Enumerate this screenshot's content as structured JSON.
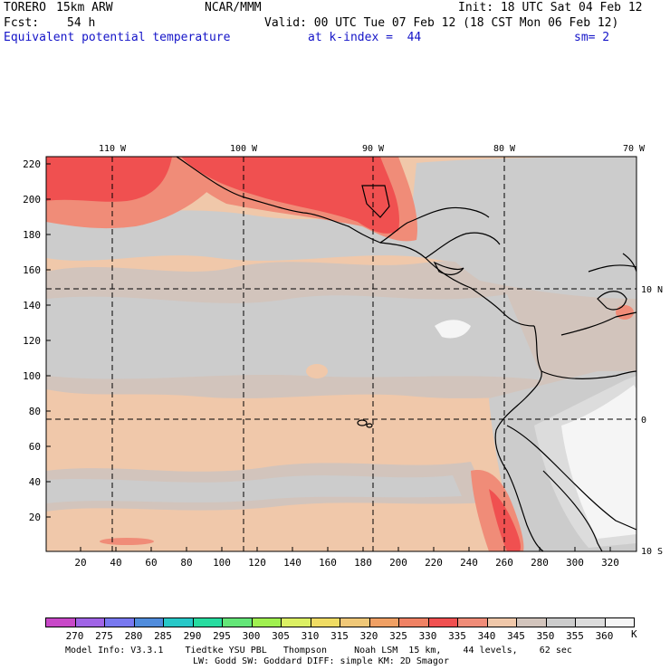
{
  "header": {
    "model": "TORERO",
    "resolution": "15km ARW",
    "center": "NCAR/MMM",
    "init": "Init: 18 UTC Sat 04 Feb 12",
    "fcst_label": "Fcst:",
    "fcst_value": "54 h",
    "valid": "Valid: 00 UTC Tue 07 Feb 12 (18 CST Mon 06 Feb 12)",
    "field": "Equivalent potential temperature",
    "level": "at k-index =  44",
    "smooth": "sm= 2"
  },
  "map": {
    "lon_labels": [
      "110 W",
      "100 W",
      "90 W",
      "80 W",
      "70 W"
    ],
    "lat_labels": [
      "10 N",
      "0",
      "10 S"
    ],
    "y_ticks": [
      "220",
      "200",
      "180",
      "160",
      "140",
      "120",
      "100",
      "80",
      "60",
      "40",
      "20"
    ],
    "x_ticks": [
      "20",
      "40",
      "60",
      "80",
      "100",
      "120",
      "140",
      "160",
      "180",
      "200",
      "220",
      "240",
      "260",
      "280",
      "300",
      "320"
    ]
  },
  "colorbar": {
    "unit": "K",
    "labels": [
      "270",
      "275",
      "280",
      "285",
      "290",
      "295",
      "300",
      "305",
      "310",
      "315",
      "320",
      "325",
      "330",
      "335",
      "340",
      "345",
      "350",
      "355",
      "360"
    ],
    "colors": [
      "#c848c8",
      "#a064e6",
      "#7878f0",
      "#508cdc",
      "#28c8c8",
      "#28dca0",
      "#64e678",
      "#a0f050",
      "#dcf064",
      "#f0dc64",
      "#f0c878",
      "#f0a064",
      "#f08264",
      "#f05050",
      "#f08c78",
      "#f0c8aa",
      "#d2c4bc",
      "#cccccc",
      "#dcdcdc",
      "#f5f5f5"
    ]
  },
  "footer": {
    "line1": "Model Info: V3.3.1    Tiedtke YSU PBL   Thompson     Noah LSM  15 km,    44 levels,    62 sec",
    "line2": "LW: Godd SW: Goddard DIFF: simple KM: 2D Smagor"
  }
}
